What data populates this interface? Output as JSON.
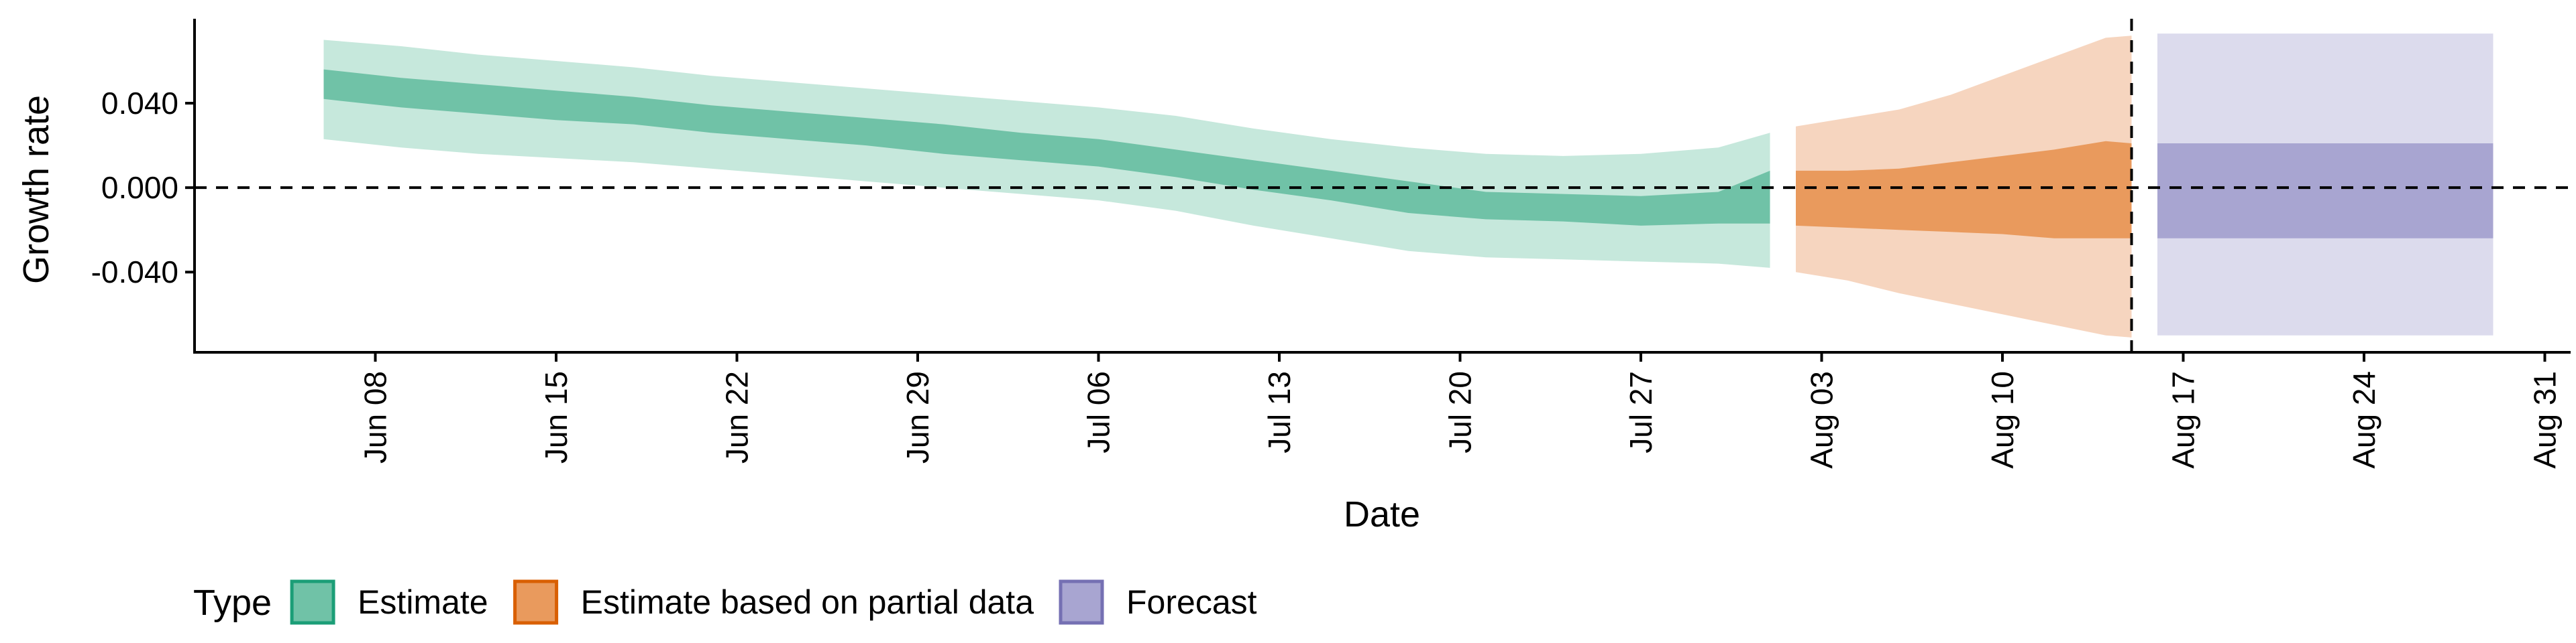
{
  "chart_data": {
    "type": "area",
    "title": "",
    "xlabel": "Date",
    "ylabel": "Growth rate",
    "x_range": [
      "2020-06-01",
      "2020-09-01"
    ],
    "ylim": [
      -0.078,
      0.08
    ],
    "y_ticks": [
      {
        "value": -0.04,
        "label": "-0.040"
      },
      {
        "value": 0.0,
        "label": "0.000"
      },
      {
        "value": 0.04,
        "label": "0.040"
      }
    ],
    "x_ticks": [
      {
        "date": "2020-06-08",
        "label": "Jun 08"
      },
      {
        "date": "2020-06-15",
        "label": "Jun 15"
      },
      {
        "date": "2020-06-22",
        "label": "Jun 22"
      },
      {
        "date": "2020-06-29",
        "label": "Jun 29"
      },
      {
        "date": "2020-07-06",
        "label": "Jul 06"
      },
      {
        "date": "2020-07-13",
        "label": "Jul 13"
      },
      {
        "date": "2020-07-20",
        "label": "Jul 20"
      },
      {
        "date": "2020-07-27",
        "label": "Jul 27"
      },
      {
        "date": "2020-08-03",
        "label": "Aug 03"
      },
      {
        "date": "2020-08-10",
        "label": "Aug 10"
      },
      {
        "date": "2020-08-17",
        "label": "Aug 17"
      },
      {
        "date": "2020-08-24",
        "label": "Aug 24"
      },
      {
        "date": "2020-08-31",
        "label": "Aug 31"
      }
    ],
    "reference_lines": [
      {
        "axis": "y",
        "value": 0.0,
        "style": "dashed"
      },
      {
        "axis": "x",
        "date": "2020-08-15",
        "style": "dashed"
      }
    ],
    "grid": false,
    "legend": {
      "title": "Type",
      "position": "bottom-left",
      "entries": [
        {
          "label": "Estimate",
          "fill": "#70c2a7",
          "stroke": "#1b9e77"
        },
        {
          "label": "Estimate based on partial data",
          "fill": "#e99a5d",
          "stroke": "#d95f02"
        },
        {
          "label": "Forecast",
          "fill": "#a8a5d1",
          "stroke": "#7570b3"
        }
      ]
    },
    "series": [
      {
        "name": "Estimate",
        "inner_color": "#70c2a7",
        "outer_color": "#c6e8dc",
        "points": [
          {
            "date": "2020-06-06",
            "lower90": 0.023,
            "lower50": 0.042,
            "upper50": 0.056,
            "upper90": 0.07
          },
          {
            "date": "2020-06-09",
            "lower90": 0.019,
            "lower50": 0.038,
            "upper50": 0.052,
            "upper90": 0.067
          },
          {
            "date": "2020-06-12",
            "lower90": 0.016,
            "lower50": 0.035,
            "upper50": 0.049,
            "upper90": 0.063
          },
          {
            "date": "2020-06-15",
            "lower90": 0.014,
            "lower50": 0.032,
            "upper50": 0.046,
            "upper90": 0.06
          },
          {
            "date": "2020-06-18",
            "lower90": 0.012,
            "lower50": 0.03,
            "upper50": 0.043,
            "upper90": 0.057
          },
          {
            "date": "2020-06-21",
            "lower90": 0.009,
            "lower50": 0.026,
            "upper50": 0.039,
            "upper90": 0.053
          },
          {
            "date": "2020-06-24",
            "lower90": 0.006,
            "lower50": 0.023,
            "upper50": 0.036,
            "upper90": 0.05
          },
          {
            "date": "2020-06-27",
            "lower90": 0.003,
            "lower50": 0.02,
            "upper50": 0.033,
            "upper90": 0.047
          },
          {
            "date": "2020-06-30",
            "lower90": 0.0,
            "lower50": 0.016,
            "upper50": 0.03,
            "upper90": 0.044
          },
          {
            "date": "2020-07-03",
            "lower90": -0.003,
            "lower50": 0.013,
            "upper50": 0.026,
            "upper90": 0.041
          },
          {
            "date": "2020-07-06",
            "lower90": -0.006,
            "lower50": 0.01,
            "upper50": 0.023,
            "upper90": 0.038
          },
          {
            "date": "2020-07-09",
            "lower90": -0.011,
            "lower50": 0.005,
            "upper50": 0.018,
            "upper90": 0.034
          },
          {
            "date": "2020-07-12",
            "lower90": -0.018,
            "lower50": -0.001,
            "upper50": 0.013,
            "upper90": 0.028
          },
          {
            "date": "2020-07-15",
            "lower90": -0.024,
            "lower50": -0.006,
            "upper50": 0.008,
            "upper90": 0.023
          },
          {
            "date": "2020-07-18",
            "lower90": -0.03,
            "lower50": -0.012,
            "upper50": 0.003,
            "upper90": 0.019
          },
          {
            "date": "2020-07-21",
            "lower90": -0.033,
            "lower50": -0.015,
            "upper50": -0.002,
            "upper90": 0.016
          },
          {
            "date": "2020-07-24",
            "lower90": -0.034,
            "lower50": -0.016,
            "upper50": -0.003,
            "upper90": 0.015
          },
          {
            "date": "2020-07-27",
            "lower90": -0.035,
            "lower50": -0.018,
            "upper50": -0.004,
            "upper90": 0.016
          },
          {
            "date": "2020-07-30",
            "lower90": -0.036,
            "lower50": -0.017,
            "upper50": -0.002,
            "upper90": 0.019
          },
          {
            "date": "2020-08-01",
            "lower90": -0.038,
            "lower50": -0.017,
            "upper50": 0.008,
            "upper90": 0.026
          }
        ]
      },
      {
        "name": "Estimate based on partial data",
        "inner_color": "#e99a5d",
        "outer_color": "#f6d5bf",
        "points": [
          {
            "date": "2020-08-02",
            "lower90": -0.04,
            "lower50": -0.018,
            "upper50": 0.008,
            "upper90": 0.029
          },
          {
            "date": "2020-08-04",
            "lower90": -0.044,
            "lower50": -0.019,
            "upper50": 0.008,
            "upper90": 0.033
          },
          {
            "date": "2020-08-06",
            "lower90": -0.05,
            "lower50": -0.02,
            "upper50": 0.009,
            "upper90": 0.037
          },
          {
            "date": "2020-08-08",
            "lower90": -0.055,
            "lower50": -0.021,
            "upper50": 0.012,
            "upper90": 0.044
          },
          {
            "date": "2020-08-10",
            "lower90": -0.06,
            "lower50": -0.022,
            "upper50": 0.015,
            "upper90": 0.053
          },
          {
            "date": "2020-08-12",
            "lower90": -0.065,
            "lower50": -0.024,
            "upper50": 0.018,
            "upper90": 0.062
          },
          {
            "date": "2020-08-14",
            "lower90": -0.07,
            "lower50": -0.024,
            "upper50": 0.022,
            "upper90": 0.071
          },
          {
            "date": "2020-08-15",
            "lower90": -0.071,
            "lower50": -0.024,
            "upper50": 0.021,
            "upper90": 0.072
          }
        ]
      },
      {
        "name": "Forecast",
        "inner_color": "#a8a5d1",
        "outer_color": "#dcdbed",
        "points": [
          {
            "date": "2020-08-16",
            "lower90": -0.07,
            "lower50": -0.024,
            "upper50": 0.021,
            "upper90": 0.073
          },
          {
            "date": "2020-08-29",
            "lower90": -0.07,
            "lower50": -0.024,
            "upper50": 0.021,
            "upper90": 0.073
          }
        ]
      }
    ]
  }
}
